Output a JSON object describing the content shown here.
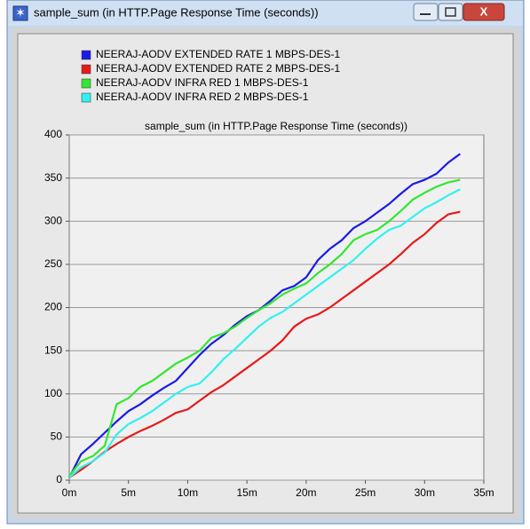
{
  "window_title": "sample_sum (in HTTP.Page Response Time (seconds))",
  "chart_data": {
    "type": "line",
    "title": "sample_sum (in HTTP.Page Response Time (seconds))",
    "x": [
      0,
      1,
      2,
      3,
      4,
      5,
      6,
      7,
      8,
      9,
      10,
      11,
      12,
      13,
      14,
      15,
      16,
      17,
      18,
      19,
      20,
      21,
      22,
      23,
      24,
      25,
      26,
      27,
      28,
      29,
      30,
      31,
      32,
      33
    ],
    "series": [
      {
        "name": "NEERAJ-AODV EXTENDED RATE  1 MBPS-DES-1",
        "color": "#1a1ae6",
        "values": [
          3,
          30,
          42,
          55,
          68,
          80,
          88,
          98,
          107,
          115,
          130,
          145,
          158,
          168,
          180,
          190,
          197,
          208,
          220,
          225,
          235,
          255,
          268,
          278,
          292,
          300,
          310,
          320,
          332,
          343,
          348,
          355,
          368,
          378
        ]
      },
      {
        "name": "NEERAJ-AODV EXTENDED RATE  2 MBPS-DES-1",
        "color": "#e61a1a",
        "values": [
          3,
          12,
          22,
          33,
          42,
          50,
          57,
          63,
          70,
          78,
          82,
          92,
          102,
          110,
          120,
          130,
          140,
          150,
          162,
          178,
          187,
          192,
          200,
          210,
          220,
          230,
          240,
          250,
          262,
          275,
          285,
          298,
          308,
          311
        ]
      },
      {
        "name": "NEERAJ-AODV INFRA RED 1 MBPS-DES-1",
        "color": "#33e633",
        "values": [
          5,
          22,
          28,
          40,
          88,
          95,
          108,
          115,
          125,
          135,
          142,
          150,
          165,
          170,
          178,
          188,
          197,
          205,
          215,
          222,
          228,
          240,
          250,
          262,
          278,
          285,
          290,
          300,
          312,
          325,
          333,
          340,
          345,
          348
        ]
      },
      {
        "name": "NEERAJ-AODV INFRA RED 2 MBPS-DES-1",
        "color": "#33f0f0",
        "values": [
          3,
          15,
          22,
          32,
          53,
          65,
          72,
          80,
          90,
          100,
          108,
          112,
          125,
          140,
          152,
          165,
          178,
          188,
          195,
          205,
          215,
          225,
          235,
          245,
          255,
          268,
          280,
          290,
          295,
          305,
          315,
          322,
          330,
          337
        ]
      }
    ],
    "xlim": [
      0,
      35
    ],
    "xticks": [
      {
        "value": 0,
        "label": "0m"
      },
      {
        "value": 5,
        "label": "5m"
      },
      {
        "value": 10,
        "label": "10m"
      },
      {
        "value": 15,
        "label": "15m"
      },
      {
        "value": 20,
        "label": "20m"
      },
      {
        "value": 25,
        "label": "25m"
      },
      {
        "value": 30,
        "label": "30m"
      },
      {
        "value": 35,
        "label": "35m"
      }
    ],
    "ylim": [
      0,
      400
    ],
    "yticks": [
      0,
      50,
      100,
      150,
      200,
      250,
      300,
      350,
      400
    ],
    "grid": true
  }
}
